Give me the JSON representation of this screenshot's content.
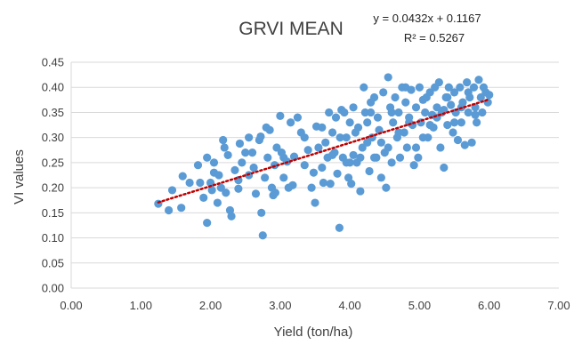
{
  "chart_data": {
    "type": "scatter",
    "title": "GRVI MEAN",
    "xlabel": "Yield (ton/ha)",
    "ylabel": "VI values",
    "xlim": [
      0,
      7
    ],
    "ylim": [
      0,
      0.45
    ],
    "xticks": [
      "0.00",
      "1.00",
      "2.00",
      "3.00",
      "4.00",
      "5.00",
      "6.00",
      "7.00"
    ],
    "yticks": [
      "0.00",
      "0.05",
      "0.10",
      "0.15",
      "0.20",
      "0.25",
      "0.30",
      "0.35",
      "0.40",
      "0.45"
    ],
    "grid": "horizontal",
    "trendline": {
      "type": "linear",
      "slope": 0.0432,
      "intercept": 0.1167,
      "x_range": [
        1.25,
        6.0
      ],
      "equation": "y = 0.0432x + 0.1167",
      "r_squared": "R² = 0.5267"
    },
    "colors": {
      "points": "#5B9BD5",
      "trendline": "#C00000",
      "grid": "#D9D9D9",
      "text": "#404040"
    },
    "series": [
      {
        "points": [
          [
            1.25,
            0.168
          ],
          [
            1.4,
            0.155
          ],
          [
            1.45,
            0.195
          ],
          [
            1.58,
            0.16
          ],
          [
            1.6,
            0.223
          ],
          [
            1.7,
            0.21
          ],
          [
            1.82,
            0.245
          ],
          [
            1.85,
            0.21
          ],
          [
            1.9,
            0.18
          ],
          [
            1.95,
            0.13
          ],
          [
            1.95,
            0.26
          ],
          [
            2.0,
            0.21
          ],
          [
            2.02,
            0.195
          ],
          [
            2.05,
            0.23
          ],
          [
            2.1,
            0.17
          ],
          [
            2.12,
            0.225
          ],
          [
            2.15,
            0.2
          ],
          [
            2.18,
            0.295
          ],
          [
            2.2,
            0.28
          ],
          [
            2.22,
            0.19
          ],
          [
            2.25,
            0.265
          ],
          [
            2.28,
            0.155
          ],
          [
            2.3,
            0.143
          ],
          [
            2.35,
            0.235
          ],
          [
            2.4,
            0.198
          ],
          [
            2.42,
            0.288
          ],
          [
            2.45,
            0.25
          ],
          [
            2.5,
            0.27
          ],
          [
            2.55,
            0.225
          ],
          [
            2.6,
            0.27
          ],
          [
            2.62,
            0.24
          ],
          [
            2.65,
            0.188
          ],
          [
            2.7,
            0.295
          ],
          [
            2.72,
            0.302
          ],
          [
            2.73,
            0.15
          ],
          [
            2.75,
            0.105
          ],
          [
            2.78,
            0.22
          ],
          [
            2.8,
            0.32
          ],
          [
            2.82,
            0.26
          ],
          [
            2.85,
            0.315
          ],
          [
            2.88,
            0.2
          ],
          [
            2.9,
            0.185
          ],
          [
            2.92,
            0.245
          ],
          [
            2.93,
            0.19
          ],
          [
            2.95,
            0.28
          ],
          [
            3.0,
            0.343
          ],
          [
            3.02,
            0.27
          ],
          [
            3.05,
            0.26
          ],
          [
            3.1,
            0.252
          ],
          [
            3.12,
            0.2
          ],
          [
            3.15,
            0.33
          ],
          [
            3.18,
            0.205
          ],
          [
            3.2,
            0.262
          ],
          [
            3.25,
            0.34
          ],
          [
            3.3,
            0.31
          ],
          [
            3.35,
            0.245
          ],
          [
            3.4,
            0.275
          ],
          [
            3.45,
            0.2
          ],
          [
            3.48,
            0.23
          ],
          [
            3.5,
            0.17
          ],
          [
            3.52,
            0.322
          ],
          [
            3.55,
            0.28
          ],
          [
            3.6,
            0.32
          ],
          [
            3.62,
            0.21
          ],
          [
            3.65,
            0.29
          ],
          [
            3.68,
            0.26
          ],
          [
            3.7,
            0.35
          ],
          [
            3.72,
            0.208
          ],
          [
            3.75,
            0.31
          ],
          [
            3.78,
            0.27
          ],
          [
            3.8,
            0.34
          ],
          [
            3.82,
            0.228
          ],
          [
            3.85,
            0.12
          ],
          [
            3.86,
            0.3
          ],
          [
            3.88,
            0.355
          ],
          [
            3.9,
            0.26
          ],
          [
            3.92,
            0.35
          ],
          [
            3.95,
            0.25
          ],
          [
            3.98,
            0.22
          ],
          [
            4.0,
            0.33
          ],
          [
            4.02,
            0.208
          ],
          [
            4.05,
            0.265
          ],
          [
            4.08,
            0.31
          ],
          [
            4.1,
            0.25
          ],
          [
            4.12,
            0.32
          ],
          [
            4.15,
            0.193
          ],
          [
            4.18,
            0.28
          ],
          [
            4.2,
            0.4
          ],
          [
            4.22,
            0.35
          ],
          [
            4.25,
            0.29
          ],
          [
            4.28,
            0.233
          ],
          [
            4.3,
            0.37
          ],
          [
            4.32,
            0.3
          ],
          [
            4.35,
            0.38
          ],
          [
            4.38,
            0.26
          ],
          [
            4.4,
            0.34
          ],
          [
            4.42,
            0.315
          ],
          [
            4.45,
            0.22
          ],
          [
            4.48,
            0.39
          ],
          [
            4.5,
            0.27
          ],
          [
            4.52,
            0.2
          ],
          [
            4.55,
            0.42
          ],
          [
            4.58,
            0.36
          ],
          [
            4.6,
            0.25
          ],
          [
            4.62,
            0.33
          ],
          [
            4.65,
            0.38
          ],
          [
            4.68,
            0.3
          ],
          [
            4.7,
            0.35
          ],
          [
            4.72,
            0.26
          ],
          [
            4.75,
            0.4
          ],
          [
            4.78,
            0.31
          ],
          [
            4.8,
            0.37
          ],
          [
            4.82,
            0.28
          ],
          [
            4.85,
            0.34
          ],
          [
            4.88,
            0.395
          ],
          [
            4.9,
            0.325
          ],
          [
            4.92,
            0.245
          ],
          [
            4.95,
            0.36
          ],
          [
            4.98,
            0.26
          ],
          [
            5.0,
            0.4
          ],
          [
            5.02,
            0.33
          ],
          [
            5.05,
            0.375
          ],
          [
            5.08,
            0.35
          ],
          [
            5.1,
            0.38
          ],
          [
            5.12,
            0.3
          ],
          [
            5.15,
            0.39
          ],
          [
            5.18,
            0.345
          ],
          [
            5.2,
            0.32
          ],
          [
            5.22,
            0.4
          ],
          [
            5.25,
            0.36
          ],
          [
            5.28,
            0.41
          ],
          [
            5.3,
            0.28
          ],
          [
            5.32,
            0.35
          ],
          [
            5.35,
            0.24
          ],
          [
            5.38,
            0.38
          ],
          [
            5.4,
            0.325
          ],
          [
            5.42,
            0.4
          ],
          [
            5.45,
            0.365
          ],
          [
            5.48,
            0.31
          ],
          [
            5.5,
            0.39
          ],
          [
            5.52,
            0.35
          ],
          [
            5.55,
            0.295
          ],
          [
            5.58,
            0.4
          ],
          [
            5.6,
            0.33
          ],
          [
            5.62,
            0.37
          ],
          [
            5.65,
            0.285
          ],
          [
            5.68,
            0.41
          ],
          [
            5.7,
            0.35
          ],
          [
            5.72,
            0.38
          ],
          [
            5.75,
            0.29
          ],
          [
            5.78,
            0.4
          ],
          [
            5.8,
            0.36
          ],
          [
            5.82,
            0.33
          ],
          [
            5.85,
            0.415
          ],
          [
            5.88,
            0.38
          ],
          [
            5.9,
            0.35
          ],
          [
            5.92,
            0.4
          ],
          [
            5.95,
            0.39
          ],
          [
            5.98,
            0.37
          ],
          [
            6.0,
            0.385
          ],
          [
            4.05,
            0.36
          ],
          [
            4.25,
            0.33
          ],
          [
            4.6,
            0.35
          ],
          [
            4.45,
            0.29
          ],
          [
            5.05,
            0.3
          ],
          [
            3.95,
            0.3
          ],
          [
            4.15,
            0.26
          ],
          [
            4.7,
            0.31
          ],
          [
            5.25,
            0.34
          ],
          [
            5.6,
            0.36
          ],
          [
            3.35,
            0.3
          ],
          [
            3.75,
            0.265
          ],
          [
            4.35,
            0.26
          ],
          [
            4.85,
            0.33
          ],
          [
            5.4,
            0.38
          ],
          [
            5.7,
            0.39
          ],
          [
            2.55,
            0.3
          ],
          [
            3.05,
            0.22
          ],
          [
            4.0,
            0.25
          ],
          [
            4.55,
            0.28
          ],
          [
            5.15,
            0.325
          ],
          [
            5.5,
            0.33
          ],
          [
            5.8,
            0.345
          ],
          [
            4.3,
            0.35
          ],
          [
            4.8,
            0.4
          ],
          [
            5.35,
            0.355
          ],
          [
            2.05,
            0.25
          ],
          [
            2.4,
            0.215
          ],
          [
            3.6,
            0.24
          ],
          [
            4.95,
            0.28
          ]
        ]
      }
    ]
  }
}
